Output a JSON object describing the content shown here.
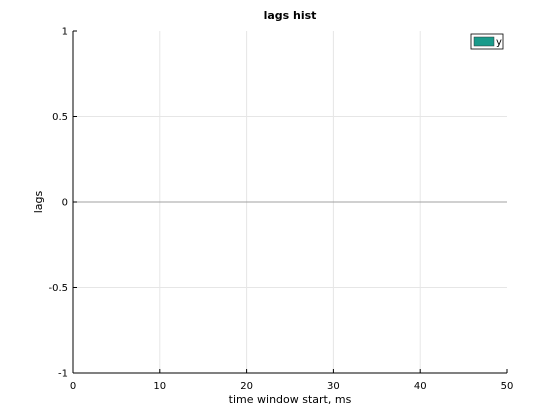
{
  "chart_data": {
    "type": "bar",
    "title": "lags hist",
    "xlabel": "time window start, ms",
    "ylabel": "lags",
    "xlim": [
      0,
      50
    ],
    "ylim": [
      -1,
      1
    ],
    "xticks": [
      0,
      10,
      20,
      30,
      40,
      50
    ],
    "yticks": [
      -1,
      -0.5,
      0,
      0.5,
      1
    ],
    "xtick_labels": [
      "0",
      "10",
      "20",
      "30",
      "40",
      "50"
    ],
    "ytick_labels": [
      "-1",
      "-0.5",
      "0",
      "0.5",
      "1"
    ],
    "grid": true,
    "legend": {
      "position": "top-right",
      "entries": [
        "y"
      ]
    },
    "series": [
      {
        "name": "y",
        "color": "#1a9a8a",
        "x": [],
        "values": []
      }
    ],
    "baseline": 0,
    "colors": {
      "grid": "#e6e6e6",
      "axes": "#000000",
      "baseline": "#a0a0a0"
    }
  }
}
